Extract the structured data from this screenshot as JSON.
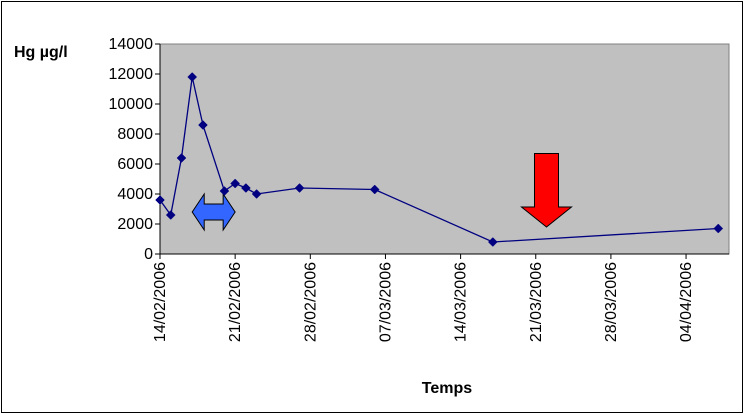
{
  "chart_data": {
    "type": "line",
    "ylabel": "Hg µg/l",
    "xlabel": "Temps",
    "ylim": [
      0,
      14000
    ],
    "y_ticks": [
      0,
      2000,
      4000,
      6000,
      8000,
      10000,
      12000,
      14000
    ],
    "xlim": [
      "2006-02-14",
      "2006-04-08"
    ],
    "x_ticks": [
      "14/02/2006",
      "21/02/2006",
      "28/02/2006",
      "07/03/2006",
      "14/03/2006",
      "21/03/2006",
      "28/03/2006",
      "04/04/2006"
    ],
    "grid": false,
    "plot_background": "#c0c0c0",
    "series": [
      {
        "color": "#000080",
        "marker": "diamond",
        "points": [
          {
            "x": "2006-02-14",
            "y": 3600
          },
          {
            "x": "2006-02-15",
            "y": 2600
          },
          {
            "x": "2006-02-16",
            "y": 6400
          },
          {
            "x": "2006-02-17",
            "y": 11800
          },
          {
            "x": "2006-02-18",
            "y": 8600
          },
          {
            "x": "2006-02-20",
            "y": 4200
          },
          {
            "x": "2006-02-21",
            "y": 4700
          },
          {
            "x": "2006-02-22",
            "y": 4400
          },
          {
            "x": "2006-02-23",
            "y": 4000
          },
          {
            "x": "2006-02-27",
            "y": 4400
          },
          {
            "x": "2006-03-06",
            "y": 4300
          },
          {
            "x": "2006-03-17",
            "y": 800
          },
          {
            "x": "2006-04-07",
            "y": 1700
          }
        ]
      }
    ],
    "annotations": [
      {
        "shape": "double-headed-arrow",
        "color": "#3366ff",
        "from": "2006-02-17",
        "to": "2006-02-21",
        "y": 2800
      },
      {
        "shape": "down-arrow",
        "color": "#ff0000",
        "x": "2006-03-22",
        "y_top": 6700,
        "y_bottom": 1800
      }
    ]
  }
}
